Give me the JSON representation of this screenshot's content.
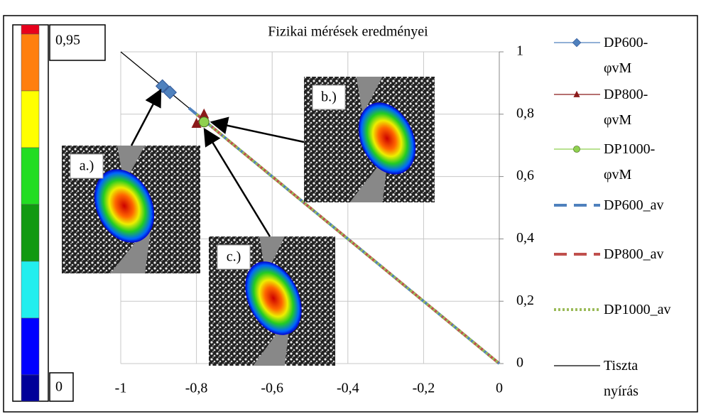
{
  "chart_data": {
    "type": "line",
    "title": "Fizikai mérések eredményei",
    "xlim": [
      -1,
      0
    ],
    "ylim": [
      0,
      1
    ],
    "xticks": [
      -1,
      {
        "value": -0.8,
        "label": "-0,8"
      },
      {
        "value": -0.6,
        "label": "-0,6"
      },
      {
        "value": -0.4,
        "label": "-0,4"
      },
      {
        "value": -0.2,
        "label": "-0,2"
      },
      0
    ],
    "yticks": [
      0,
      {
        "value": 0.2,
        "label": "0,2"
      },
      {
        "value": 0.4,
        "label": "0,4"
      },
      {
        "value": 0.6,
        "label": "0,6"
      },
      {
        "value": 0.8,
        "label": "0,8"
      },
      1
    ],
    "grid": true,
    "series": [
      {
        "name": "DP600-φvM",
        "color": "#4f81bd",
        "marker": "diamond",
        "x": [
          -0.89,
          -0.87
        ],
        "values": [
          0.89,
          0.87
        ]
      },
      {
        "name": "DP800-φvM",
        "color": "#8b1a1a",
        "marker": "triangle",
        "x": [
          -0.8,
          -0.78
        ],
        "values": [
          0.77,
          0.8
        ]
      },
      {
        "name": "DP1000-φvM",
        "color": "#8fd14f",
        "marker": "circle",
        "x": [
          -0.78
        ],
        "values": [
          0.775
        ]
      },
      {
        "name": "DP600_av",
        "color": "#4f81bd",
        "dash": "dashed",
        "x": [
          -0.82,
          0
        ],
        "values": [
          0.82,
          0
        ]
      },
      {
        "name": "DP800_av",
        "color": "#c0504d",
        "dash": "dashed",
        "x": [
          -0.8,
          0
        ],
        "values": [
          0.8,
          0
        ]
      },
      {
        "name": "DP1000_av",
        "color": "#9bbb59",
        "dash": "dotted",
        "x": [
          -0.8,
          0
        ],
        "values": [
          0.8,
          0
        ]
      },
      {
        "name": "Tiszta nyírás",
        "color": "#000000",
        "x": [
          -1,
          0
        ],
        "values": [
          1,
          0
        ]
      }
    ],
    "insets": [
      "a.)",
      "b.)",
      "c.)"
    ],
    "colorbar": {
      "labels": [
        "0,95",
        "0"
      ],
      "colors": [
        "#e8001c",
        "#ff7f0e",
        "#ffff00",
        "#22dd22",
        "#119911",
        "#22eeee",
        "#0000ff",
        "#000099"
      ]
    }
  }
}
